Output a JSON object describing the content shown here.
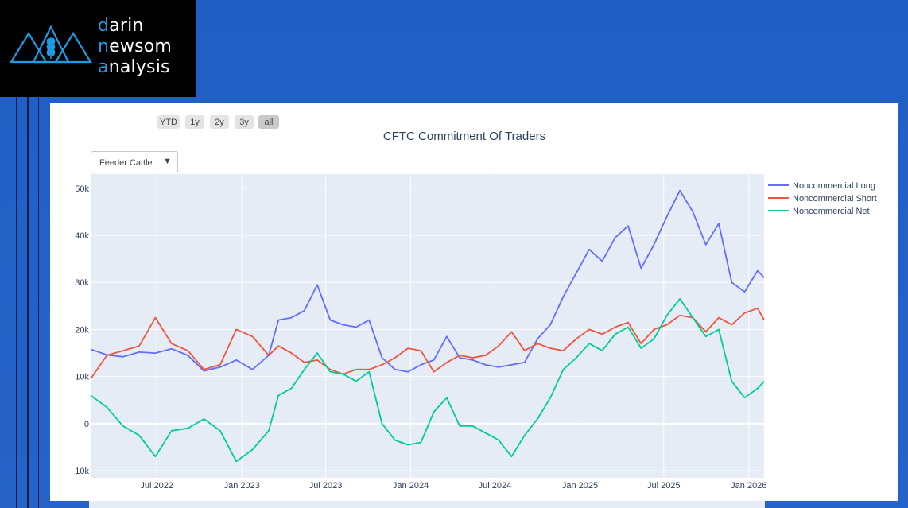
{
  "brand": {
    "line1_accent": "d",
    "line1_rest": "arin",
    "line2_pre": "n",
    "line2_mid": "ew",
    "line2_post": "som",
    "line3_accent": "a",
    "line3_rest": "nalysis",
    "colors": {
      "accent": "#1e9ae6",
      "background": "#000000"
    }
  },
  "range_buttons": [
    {
      "label": "YTD",
      "active": false
    },
    {
      "label": "1y",
      "active": false
    },
    {
      "label": "2y",
      "active": false
    },
    {
      "label": "3y",
      "active": false
    },
    {
      "label": "all",
      "active": true
    }
  ],
  "dropdown": {
    "selected": "Feeder Cattle",
    "arrow": "▼"
  },
  "chart_data": {
    "type": "line",
    "title": "CFTC Commitment Of Traders",
    "xlabel": "",
    "ylabel": "",
    "xlim": [
      "2022-02-08",
      "2026-02-03"
    ],
    "ylim": [
      -11500,
      53000
    ],
    "x_ticks": [
      "Jul 2022",
      "Jan 2023",
      "Jul 2023",
      "Jan 2024",
      "Jul 2024",
      "Jan 2025",
      "Jul 2025",
      "Jan 2026"
    ],
    "y_ticks": [
      "−10k",
      "0",
      "10k",
      "20k",
      "30k",
      "40k",
      "50k"
    ],
    "grid": true,
    "legend_position": "right",
    "series": [
      {
        "name": "Noncommercial Long",
        "color": "#636efa",
        "points": [
          [
            "2022-02-08",
            15800
          ],
          [
            "2022-03-15",
            14600
          ],
          [
            "2022-04-19",
            14200
          ],
          [
            "2022-05-24",
            15200
          ],
          [
            "2022-06-28",
            15000
          ],
          [
            "2022-08-02",
            15900
          ],
          [
            "2022-09-06",
            14500
          ],
          [
            "2022-10-11",
            11200
          ],
          [
            "2022-11-15",
            12000
          ],
          [
            "2022-12-20",
            13500
          ],
          [
            "2023-01-24",
            11500
          ],
          [
            "2023-02-28",
            14500
          ],
          [
            "2023-03-21",
            22000
          ],
          [
            "2023-04-18",
            22500
          ],
          [
            "2023-05-16",
            24000
          ],
          [
            "2023-06-13",
            29500
          ],
          [
            "2023-07-11",
            22000
          ],
          [
            "2023-08-08",
            21000
          ],
          [
            "2023-09-05",
            20500
          ],
          [
            "2023-10-03",
            22000
          ],
          [
            "2023-10-31",
            14000
          ],
          [
            "2023-11-28",
            11500
          ],
          [
            "2023-12-26",
            11000
          ],
          [
            "2024-01-23",
            12500
          ],
          [
            "2024-02-20",
            13500
          ],
          [
            "2024-03-19",
            18500
          ],
          [
            "2024-04-16",
            14000
          ],
          [
            "2024-05-14",
            13500
          ],
          [
            "2024-06-11",
            12500
          ],
          [
            "2024-07-09",
            12000
          ],
          [
            "2024-08-06",
            12500
          ],
          [
            "2024-09-03",
            13000
          ],
          [
            "2024-10-01",
            18000
          ],
          [
            "2024-10-29",
            21000
          ],
          [
            "2024-11-26",
            27000
          ],
          [
            "2024-12-24",
            32000
          ],
          [
            "2025-01-21",
            37000
          ],
          [
            "2025-02-18",
            34500
          ],
          [
            "2025-03-18",
            39500
          ],
          [
            "2025-04-15",
            42000
          ],
          [
            "2025-05-13",
            33000
          ],
          [
            "2025-06-10",
            38000
          ],
          [
            "2025-07-08",
            44000
          ],
          [
            "2025-08-05",
            49500
          ],
          [
            "2025-09-02",
            45000
          ],
          [
            "2025-09-30",
            38000
          ],
          [
            "2025-10-28",
            42500
          ],
          [
            "2025-11-25",
            30000
          ],
          [
            "2025-12-23",
            28000
          ],
          [
            "2026-01-20",
            32500
          ],
          [
            "2026-02-03",
            31000
          ]
        ]
      },
      {
        "name": "Noncommercial Short",
        "color": "#ef553b",
        "points": [
          [
            "2022-02-08",
            9500
          ],
          [
            "2022-03-15",
            14500
          ],
          [
            "2022-04-19",
            15500
          ],
          [
            "2022-05-24",
            16500
          ],
          [
            "2022-06-28",
            22500
          ],
          [
            "2022-08-02",
            17000
          ],
          [
            "2022-09-06",
            15500
          ],
          [
            "2022-10-11",
            11500
          ],
          [
            "2022-11-15",
            12500
          ],
          [
            "2022-12-20",
            20000
          ],
          [
            "2023-01-24",
            18500
          ],
          [
            "2023-02-28",
            14500
          ],
          [
            "2023-03-21",
            16500
          ],
          [
            "2023-04-18",
            15000
          ],
          [
            "2023-05-16",
            13000
          ],
          [
            "2023-06-13",
            13500
          ],
          [
            "2023-07-11",
            11500
          ],
          [
            "2023-08-08",
            10500
          ],
          [
            "2023-09-05",
            11500
          ],
          [
            "2023-10-03",
            11500
          ],
          [
            "2023-10-31",
            12500
          ],
          [
            "2023-11-28",
            14000
          ],
          [
            "2023-12-26",
            16000
          ],
          [
            "2024-01-23",
            15500
          ],
          [
            "2024-02-20",
            11000
          ],
          [
            "2024-03-19",
            13000
          ],
          [
            "2024-04-16",
            14500
          ],
          [
            "2024-05-14",
            14000
          ],
          [
            "2024-06-11",
            14500
          ],
          [
            "2024-07-09",
            16500
          ],
          [
            "2024-08-06",
            19500
          ],
          [
            "2024-09-03",
            15500
          ],
          [
            "2024-10-01",
            17000
          ],
          [
            "2024-10-29",
            16000
          ],
          [
            "2024-11-26",
            15500
          ],
          [
            "2024-12-24",
            18000
          ],
          [
            "2025-01-21",
            20000
          ],
          [
            "2025-02-18",
            19000
          ],
          [
            "2025-03-18",
            20500
          ],
          [
            "2025-04-15",
            21500
          ],
          [
            "2025-05-13",
            17000
          ],
          [
            "2025-06-10",
            20000
          ],
          [
            "2025-07-08",
            21000
          ],
          [
            "2025-08-05",
            23000
          ],
          [
            "2025-09-02",
            22500
          ],
          [
            "2025-09-30",
            19500
          ],
          [
            "2025-10-28",
            22500
          ],
          [
            "2025-11-25",
            21000
          ],
          [
            "2025-12-23",
            23500
          ],
          [
            "2026-01-20",
            24500
          ],
          [
            "2026-02-03",
            22000
          ]
        ]
      },
      {
        "name": "Noncommercial Net",
        "color": "#00cc96",
        "points": [
          [
            "2022-02-08",
            6000
          ],
          [
            "2022-03-15",
            3500
          ],
          [
            "2022-04-19",
            -500
          ],
          [
            "2022-05-24",
            -2500
          ],
          [
            "2022-06-28",
            -7000
          ],
          [
            "2022-08-02",
            -1500
          ],
          [
            "2022-09-06",
            -1000
          ],
          [
            "2022-10-11",
            1000
          ],
          [
            "2022-11-15",
            -1500
          ],
          [
            "2022-12-20",
            -8000
          ],
          [
            "2023-01-24",
            -5500
          ],
          [
            "2023-02-28",
            -1500
          ],
          [
            "2023-03-21",
            6000
          ],
          [
            "2023-04-18",
            7500
          ],
          [
            "2023-05-16",
            11500
          ],
          [
            "2023-06-13",
            15000
          ],
          [
            "2023-07-11",
            11000
          ],
          [
            "2023-08-08",
            10500
          ],
          [
            "2023-09-05",
            9000
          ],
          [
            "2023-10-03",
            11000
          ],
          [
            "2023-10-31",
            0
          ],
          [
            "2023-11-28",
            -3500
          ],
          [
            "2023-12-26",
            -4500
          ],
          [
            "2024-01-23",
            -4000
          ],
          [
            "2024-02-20",
            2500
          ],
          [
            "2024-03-19",
            5500
          ],
          [
            "2024-04-16",
            -500
          ],
          [
            "2024-05-14",
            -500
          ],
          [
            "2024-06-11",
            -2000
          ],
          [
            "2024-07-09",
            -3500
          ],
          [
            "2024-08-06",
            -7000
          ],
          [
            "2024-09-03",
            -2500
          ],
          [
            "2024-10-01",
            1000
          ],
          [
            "2024-10-29",
            5500
          ],
          [
            "2024-11-26",
            11500
          ],
          [
            "2024-12-24",
            14000
          ],
          [
            "2025-01-21",
            17000
          ],
          [
            "2025-02-18",
            15500
          ],
          [
            "2025-03-18",
            19000
          ],
          [
            "2025-04-15",
            20500
          ],
          [
            "2025-05-13",
            16000
          ],
          [
            "2025-06-10",
            18000
          ],
          [
            "2025-07-08",
            23000
          ],
          [
            "2025-08-05",
            26500
          ],
          [
            "2025-09-02",
            22500
          ],
          [
            "2025-09-30",
            18500
          ],
          [
            "2025-10-28",
            20000
          ],
          [
            "2025-11-25",
            9000
          ],
          [
            "2025-12-23",
            5500
          ],
          [
            "2026-01-20",
            7500
          ],
          [
            "2026-02-03",
            9000
          ]
        ]
      }
    ]
  },
  "colors": {
    "plot_bg": "#e5ecf6",
    "grid": "#ffffff",
    "text": "#2a3f5f",
    "page_bg": "#2563c9"
  }
}
